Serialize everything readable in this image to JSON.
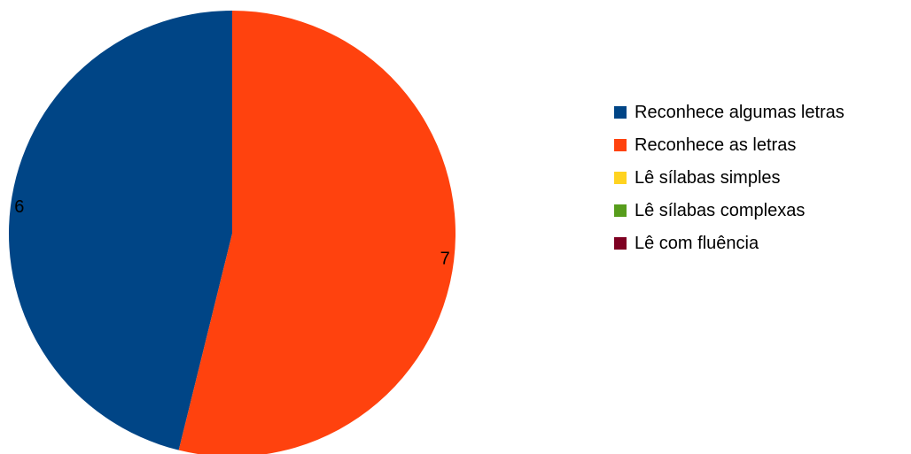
{
  "chart_data": {
    "type": "pie",
    "title": "",
    "categories": [
      "Reconhece algumas letras",
      "Reconhece as letras",
      "Lê sílabas simples",
      "Lê sílabas complexas",
      "Lê com fluência"
    ],
    "values": [
      6,
      7,
      0,
      0,
      0
    ],
    "data_labels": [
      "6",
      "7",
      "",
      "",
      ""
    ],
    "colors": [
      "#004586",
      "#ff420e",
      "#ffd320",
      "#579d1c",
      "#7e0021"
    ],
    "legend_position": "right",
    "start_angle": "top",
    "direction": "clockwise-from-second-series"
  }
}
